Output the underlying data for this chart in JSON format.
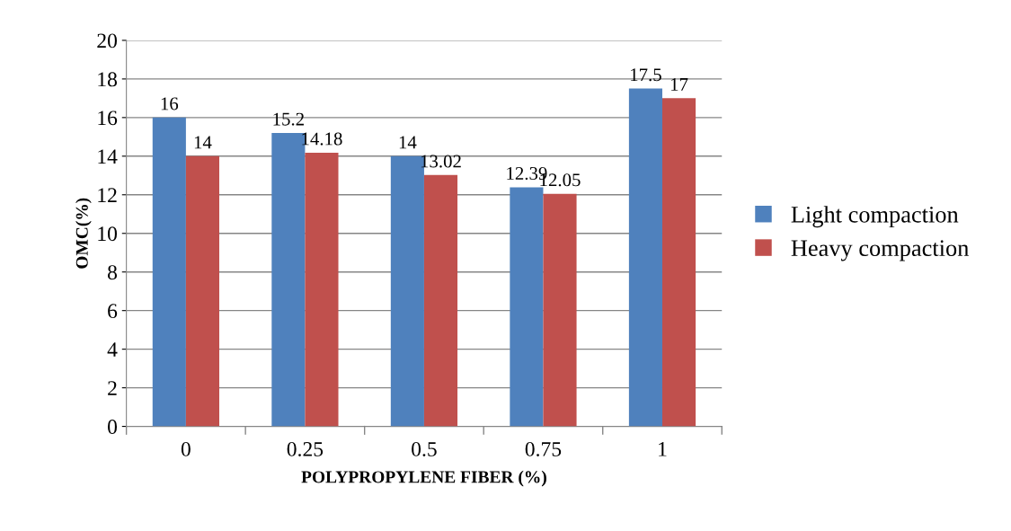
{
  "chart_data": {
    "type": "bar",
    "xlabel": "POLYPROPYLENE FIBER (%)",
    "ylabel": "OMC(%)",
    "categories": [
      "0",
      "0.25",
      "0.5",
      "0.75",
      "1"
    ],
    "series": [
      {
        "name": "Light compaction",
        "color": "#4f81bd",
        "values": [
          16,
          15.2,
          14,
          12.39,
          17.5
        ]
      },
      {
        "name": "Heavy compaction",
        "color": "#c0504d",
        "values": [
          14,
          14.18,
          13.02,
          12.05,
          17
        ]
      }
    ],
    "ylim": [
      0,
      20
    ],
    "yticks": [
      0,
      2,
      4,
      6,
      8,
      10,
      12,
      14,
      16,
      18,
      20
    ],
    "grid": "y",
    "legend": "right",
    "data_labels": true
  }
}
